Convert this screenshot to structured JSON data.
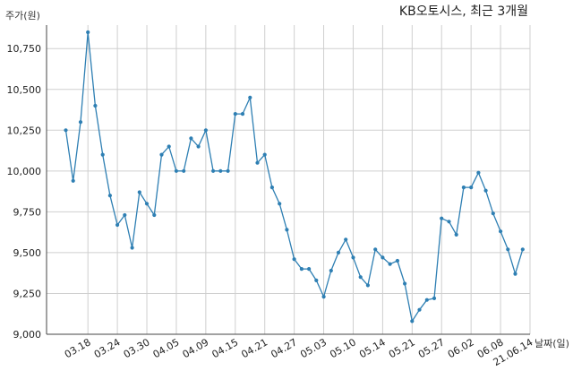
{
  "chart_data": {
    "type": "line",
    "title": "KB오토시스, 최근 3개월",
    "ylabel": "주가(원)",
    "xlabel": "날짜(일)",
    "ylim": [
      9000,
      10850
    ],
    "yticks": [
      9000,
      9250,
      9500,
      9750,
      10000,
      10250,
      10500,
      10750
    ],
    "ytick_labels": [
      "9,000",
      "9,250",
      "9,500",
      "9,750",
      "10,000",
      "10,250",
      "10,500",
      "10,750"
    ],
    "grid": true,
    "color": "#2e7fb3",
    "x_labels": [
      {
        "index": 3,
        "label": "03.18"
      },
      {
        "index": 7,
        "label": "03.24"
      },
      {
        "index": 11,
        "label": "03.30"
      },
      {
        "index": 15,
        "label": "04.05"
      },
      {
        "index": 19,
        "label": "04.09"
      },
      {
        "index": 23,
        "label": "04.15"
      },
      {
        "index": 27,
        "label": "04.21"
      },
      {
        "index": 31,
        "label": "04.27"
      },
      {
        "index": 35,
        "label": "05.03"
      },
      {
        "index": 39,
        "label": "05.10"
      },
      {
        "index": 43,
        "label": "05.14"
      },
      {
        "index": 47,
        "label": "05.21"
      },
      {
        "index": 51,
        "label": "05.27"
      },
      {
        "index": 55,
        "label": "06.02"
      },
      {
        "index": 59,
        "label": "06.08"
      },
      {
        "index": 63,
        "label": "21.06.14"
      }
    ],
    "values": [
      10250,
      9940,
      10300,
      10850,
      10400,
      10100,
      9850,
      9670,
      9730,
      9530,
      9870,
      9800,
      9730,
      10100,
      10150,
      10000,
      10000,
      10200,
      10150,
      10250,
      10000,
      10000,
      10000,
      10350,
      10350,
      10450,
      10050,
      10100,
      9900,
      9800,
      9640,
      9460,
      9400,
      9400,
      9330,
      9230,
      9390,
      9500,
      9580,
      9470,
      9350,
      9300,
      9520,
      9470,
      9430,
      9450,
      9310,
      9080,
      9150,
      9210,
      9220,
      9710,
      9690,
      9610,
      9900,
      9900,
      9990,
      9880,
      9740,
      9630,
      9520,
      9370,
      9520
    ]
  }
}
